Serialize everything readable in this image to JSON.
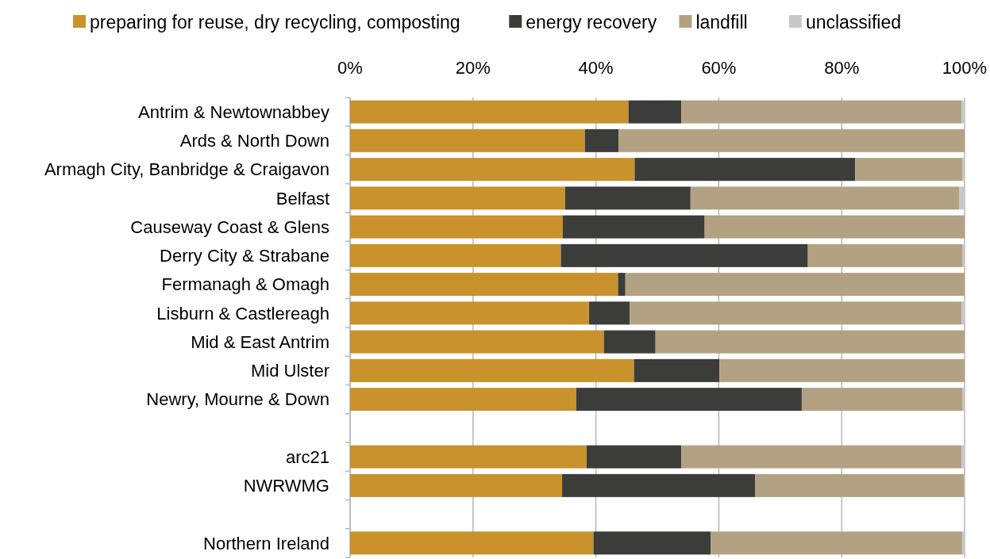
{
  "chart_data": {
    "type": "bar",
    "orientation": "horizontal",
    "stacked": true,
    "categories": [
      "Antrim & Newtownabbey",
      "Ards & North Down",
      "Armagh City, Banbridge & Craigavon",
      "Belfast",
      "Causeway Coast & Glens",
      "Derry City & Strabane",
      "Fermanagh & Omagh",
      "Lisburn & Castlereagh",
      "Mid & East Antrim",
      "Mid Ulster",
      "Newry, Mourne & Down",
      null,
      "arc21",
      "NWRWMG",
      null,
      "Northern Ireland"
    ],
    "series": [
      {
        "name": "preparing for reuse, dry recycling, composting",
        "color": "#c9922c",
        "values": [
          45.3,
          38.2,
          46.3,
          35.0,
          34.6,
          34.3,
          43.6,
          38.9,
          41.3,
          46.2,
          36.8,
          null,
          38.5,
          34.5,
          null,
          39.6
        ]
      },
      {
        "name": "energy recovery",
        "color": "#3c3c3b",
        "values": [
          8.6,
          5.5,
          35.9,
          20.4,
          23.1,
          40.2,
          1.2,
          6.6,
          8.4,
          13.9,
          36.7,
          null,
          15.4,
          31.4,
          null,
          19.1
        ]
      },
      {
        "name": "landfill",
        "color": "#b2a283",
        "values": [
          45.6,
          56.3,
          17.5,
          43.7,
          42.3,
          25.2,
          55.2,
          54.0,
          50.3,
          39.9,
          26.2,
          null,
          45.6,
          34.0,
          null,
          40.9
        ]
      },
      {
        "name": "unclassified",
        "color": "#c8c8c8",
        "values": [
          0.5,
          0,
          0.3,
          0.9,
          0,
          0.3,
          0,
          0.5,
          0,
          0,
          0.3,
          null,
          0.5,
          null,
          null,
          0.4
        ]
      }
    ],
    "xlim": [
      0,
      100
    ],
    "xticks": [
      {
        "value": 0,
        "label": "0%"
      },
      {
        "value": 20,
        "label": "20%"
      },
      {
        "value": 40,
        "label": "40%"
      },
      {
        "value": 60,
        "label": "60%"
      },
      {
        "value": 80,
        "label": "80%"
      },
      {
        "value": 100,
        "label": "100%"
      }
    ],
    "grid": "x",
    "legend": "top"
  }
}
